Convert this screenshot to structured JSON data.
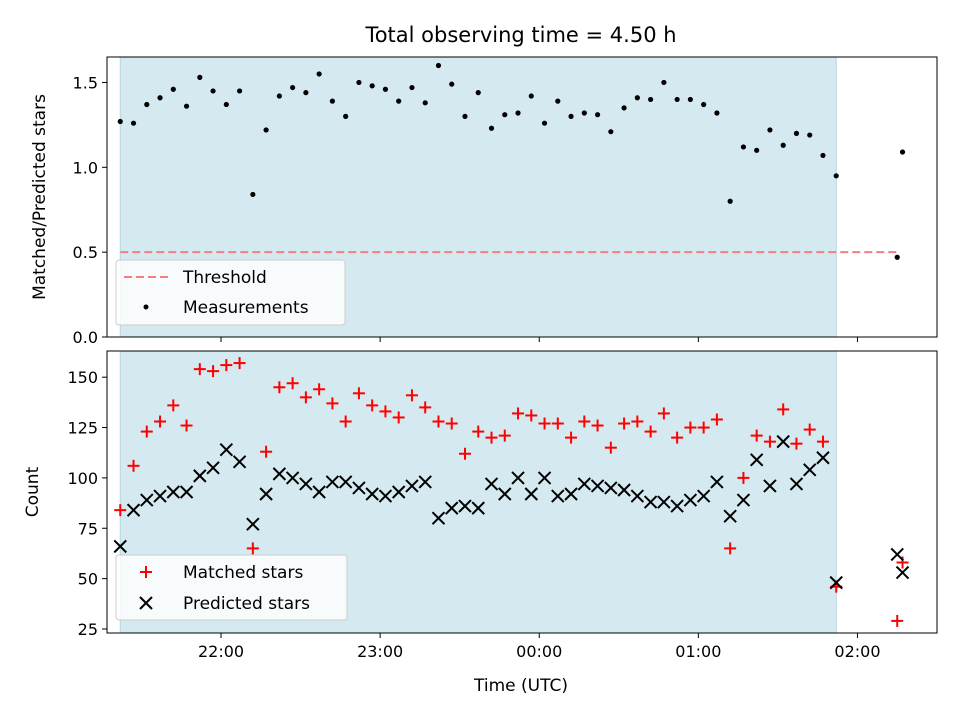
{
  "chart_data": {
    "type": "scatter",
    "title": "Total observing time = 4.50 h",
    "xlabel": "Time (UTC)",
    "x_axis": {
      "kind": "time",
      "range": [
        "21:17",
        "02:30"
      ],
      "ticks": [
        "22:00",
        "23:00",
        "00:00",
        "01:00",
        "02:00"
      ]
    },
    "observing_span": [
      "21:22",
      "01:52"
    ],
    "colors": {
      "span": "#d5eaf0",
      "threshold": "#f08080",
      "matched": "#ff0000",
      "predicted": "#000000",
      "ratio": "#000000"
    },
    "top": {
      "ylabel": "Matched/Predicted stars",
      "ylim": [
        0,
        1.65
      ],
      "yticks": [
        "0.0",
        "0.5",
        "1.0",
        "1.5"
      ],
      "legend_position": "lower-left",
      "threshold": {
        "name": "Threshold",
        "y": 0.5,
        "x_range": [
          "21:22",
          "02:15"
        ]
      },
      "measurements": {
        "name": "Measurements",
        "points": [
          [
            "21:22",
            1.27
          ],
          [
            "21:27",
            1.26
          ],
          [
            "21:32",
            1.37
          ],
          [
            "21:37",
            1.41
          ],
          [
            "21:42",
            1.46
          ],
          [
            "21:47",
            1.36
          ],
          [
            "21:52",
            1.53
          ],
          [
            "21:57",
            1.45
          ],
          [
            "22:02",
            1.37
          ],
          [
            "22:07",
            1.45
          ],
          [
            "22:12",
            0.84
          ],
          [
            "22:17",
            1.22
          ],
          [
            "22:22",
            1.42
          ],
          [
            "22:27",
            1.47
          ],
          [
            "22:32",
            1.44
          ],
          [
            "22:37",
            1.55
          ],
          [
            "22:42",
            1.39
          ],
          [
            "22:47",
            1.3
          ],
          [
            "22:52",
            1.5
          ],
          [
            "22:57",
            1.48
          ],
          [
            "23:02",
            1.46
          ],
          [
            "23:07",
            1.39
          ],
          [
            "23:12",
            1.47
          ],
          [
            "23:17",
            1.38
          ],
          [
            "23:22",
            1.6
          ],
          [
            "23:27",
            1.49
          ],
          [
            "23:32",
            1.3
          ],
          [
            "23:37",
            1.44
          ],
          [
            "23:42",
            1.23
          ],
          [
            "23:47",
            1.31
          ],
          [
            "23:52",
            1.32
          ],
          [
            "23:57",
            1.42
          ],
          [
            "00:02",
            1.26
          ],
          [
            "00:07",
            1.39
          ],
          [
            "00:12",
            1.3
          ],
          [
            "00:17",
            1.32
          ],
          [
            "00:22",
            1.31
          ],
          [
            "00:27",
            1.21
          ],
          [
            "00:32",
            1.35
          ],
          [
            "00:37",
            1.41
          ],
          [
            "00:42",
            1.4
          ],
          [
            "00:47",
            1.5
          ],
          [
            "00:52",
            1.4
          ],
          [
            "00:57",
            1.4
          ],
          [
            "01:02",
            1.37
          ],
          [
            "01:07",
            1.32
          ],
          [
            "01:12",
            0.8
          ],
          [
            "01:17",
            1.12
          ],
          [
            "01:22",
            1.1
          ],
          [
            "01:27",
            1.22
          ],
          [
            "01:32",
            1.13
          ],
          [
            "01:37",
            1.2
          ],
          [
            "01:42",
            1.19
          ],
          [
            "01:47",
            1.07
          ],
          [
            "01:52",
            0.95
          ],
          [
            "02:15",
            0.47
          ],
          [
            "02:17",
            1.09
          ]
        ]
      }
    },
    "bottom": {
      "ylabel": "Count",
      "ylim": [
        23,
        163
      ],
      "yticks": [
        "25",
        "50",
        "75",
        "100",
        "125",
        "150"
      ],
      "legend_position": "lower-left",
      "series": [
        {
          "name": "Matched stars",
          "marker": "+",
          "points": [
            [
              "21:22",
              84
            ],
            [
              "21:27",
              106
            ],
            [
              "21:32",
              123
            ],
            [
              "21:37",
              128
            ],
            [
              "21:42",
              136
            ],
            [
              "21:47",
              126
            ],
            [
              "21:52",
              154
            ],
            [
              "21:57",
              153
            ],
            [
              "22:02",
              156
            ],
            [
              "22:07",
              157
            ],
            [
              "22:12",
              65
            ],
            [
              "22:17",
              113
            ],
            [
              "22:22",
              145
            ],
            [
              "22:27",
              147
            ],
            [
              "22:32",
              140
            ],
            [
              "22:37",
              144
            ],
            [
              "22:42",
              137
            ],
            [
              "22:47",
              128
            ],
            [
              "22:52",
              142
            ],
            [
              "22:57",
              136
            ],
            [
              "23:02",
              133
            ],
            [
              "23:07",
              130
            ],
            [
              "23:12",
              141
            ],
            [
              "23:17",
              135
            ],
            [
              "23:22",
              128
            ],
            [
              "23:27",
              127
            ],
            [
              "23:32",
              112
            ],
            [
              "23:37",
              123
            ],
            [
              "23:42",
              120
            ],
            [
              "23:47",
              121
            ],
            [
              "23:52",
              132
            ],
            [
              "23:57",
              131
            ],
            [
              "00:02",
              127
            ],
            [
              "00:07",
              127
            ],
            [
              "00:12",
              120
            ],
            [
              "00:17",
              128
            ],
            [
              "00:22",
              126
            ],
            [
              "00:27",
              115
            ],
            [
              "00:32",
              127
            ],
            [
              "00:37",
              128
            ],
            [
              "00:42",
              123
            ],
            [
              "00:47",
              132
            ],
            [
              "00:52",
              120
            ],
            [
              "00:57",
              125
            ],
            [
              "01:02",
              125
            ],
            [
              "01:07",
              129
            ],
            [
              "01:12",
              65
            ],
            [
              "01:17",
              100
            ],
            [
              "01:22",
              121
            ],
            [
              "01:27",
              118
            ],
            [
              "01:32",
              134
            ],
            [
              "01:37",
              117
            ],
            [
              "01:42",
              124
            ],
            [
              "01:47",
              118
            ],
            [
              "01:52",
              46
            ],
            [
              "02:15",
              29
            ],
            [
              "02:17",
              58
            ]
          ]
        },
        {
          "name": "Predicted stars",
          "marker": "x",
          "points": [
            [
              "21:22",
              66
            ],
            [
              "21:27",
              84
            ],
            [
              "21:32",
              89
            ],
            [
              "21:37",
              91
            ],
            [
              "21:42",
              93
            ],
            [
              "21:47",
              93
            ],
            [
              "21:52",
              101
            ],
            [
              "21:57",
              105
            ],
            [
              "22:02",
              114
            ],
            [
              "22:07",
              108
            ],
            [
              "22:12",
              77
            ],
            [
              "22:17",
              92
            ],
            [
              "22:22",
              102
            ],
            [
              "22:27",
              100
            ],
            [
              "22:32",
              97
            ],
            [
              "22:37",
              93
            ],
            [
              "22:42",
              98
            ],
            [
              "22:47",
              98
            ],
            [
              "22:52",
              95
            ],
            [
              "22:57",
              92
            ],
            [
              "23:02",
              91
            ],
            [
              "23:07",
              93
            ],
            [
              "23:12",
              96
            ],
            [
              "23:17",
              98
            ],
            [
              "23:22",
              80
            ],
            [
              "23:27",
              85
            ],
            [
              "23:32",
              86
            ],
            [
              "23:37",
              85
            ],
            [
              "23:42",
              97
            ],
            [
              "23:47",
              92
            ],
            [
              "23:52",
              100
            ],
            [
              "23:57",
              92
            ],
            [
              "00:02",
              100
            ],
            [
              "00:07",
              91
            ],
            [
              "00:12",
              92
            ],
            [
              "00:17",
              97
            ],
            [
              "00:22",
              96
            ],
            [
              "00:27",
              95
            ],
            [
              "00:32",
              94
            ],
            [
              "00:37",
              91
            ],
            [
              "00:42",
              88
            ],
            [
              "00:47",
              88
            ],
            [
              "00:52",
              86
            ],
            [
              "00:57",
              89
            ],
            [
              "01:02",
              91
            ],
            [
              "01:07",
              98
            ],
            [
              "01:12",
              81
            ],
            [
              "01:17",
              89
            ],
            [
              "01:22",
              109
            ],
            [
              "01:27",
              96
            ],
            [
              "01:32",
              118
            ],
            [
              "01:37",
              97
            ],
            [
              "01:42",
              104
            ],
            [
              "01:47",
              110
            ],
            [
              "01:52",
              48
            ],
            [
              "02:15",
              62
            ],
            [
              "02:17",
              53
            ]
          ]
        }
      ]
    }
  }
}
